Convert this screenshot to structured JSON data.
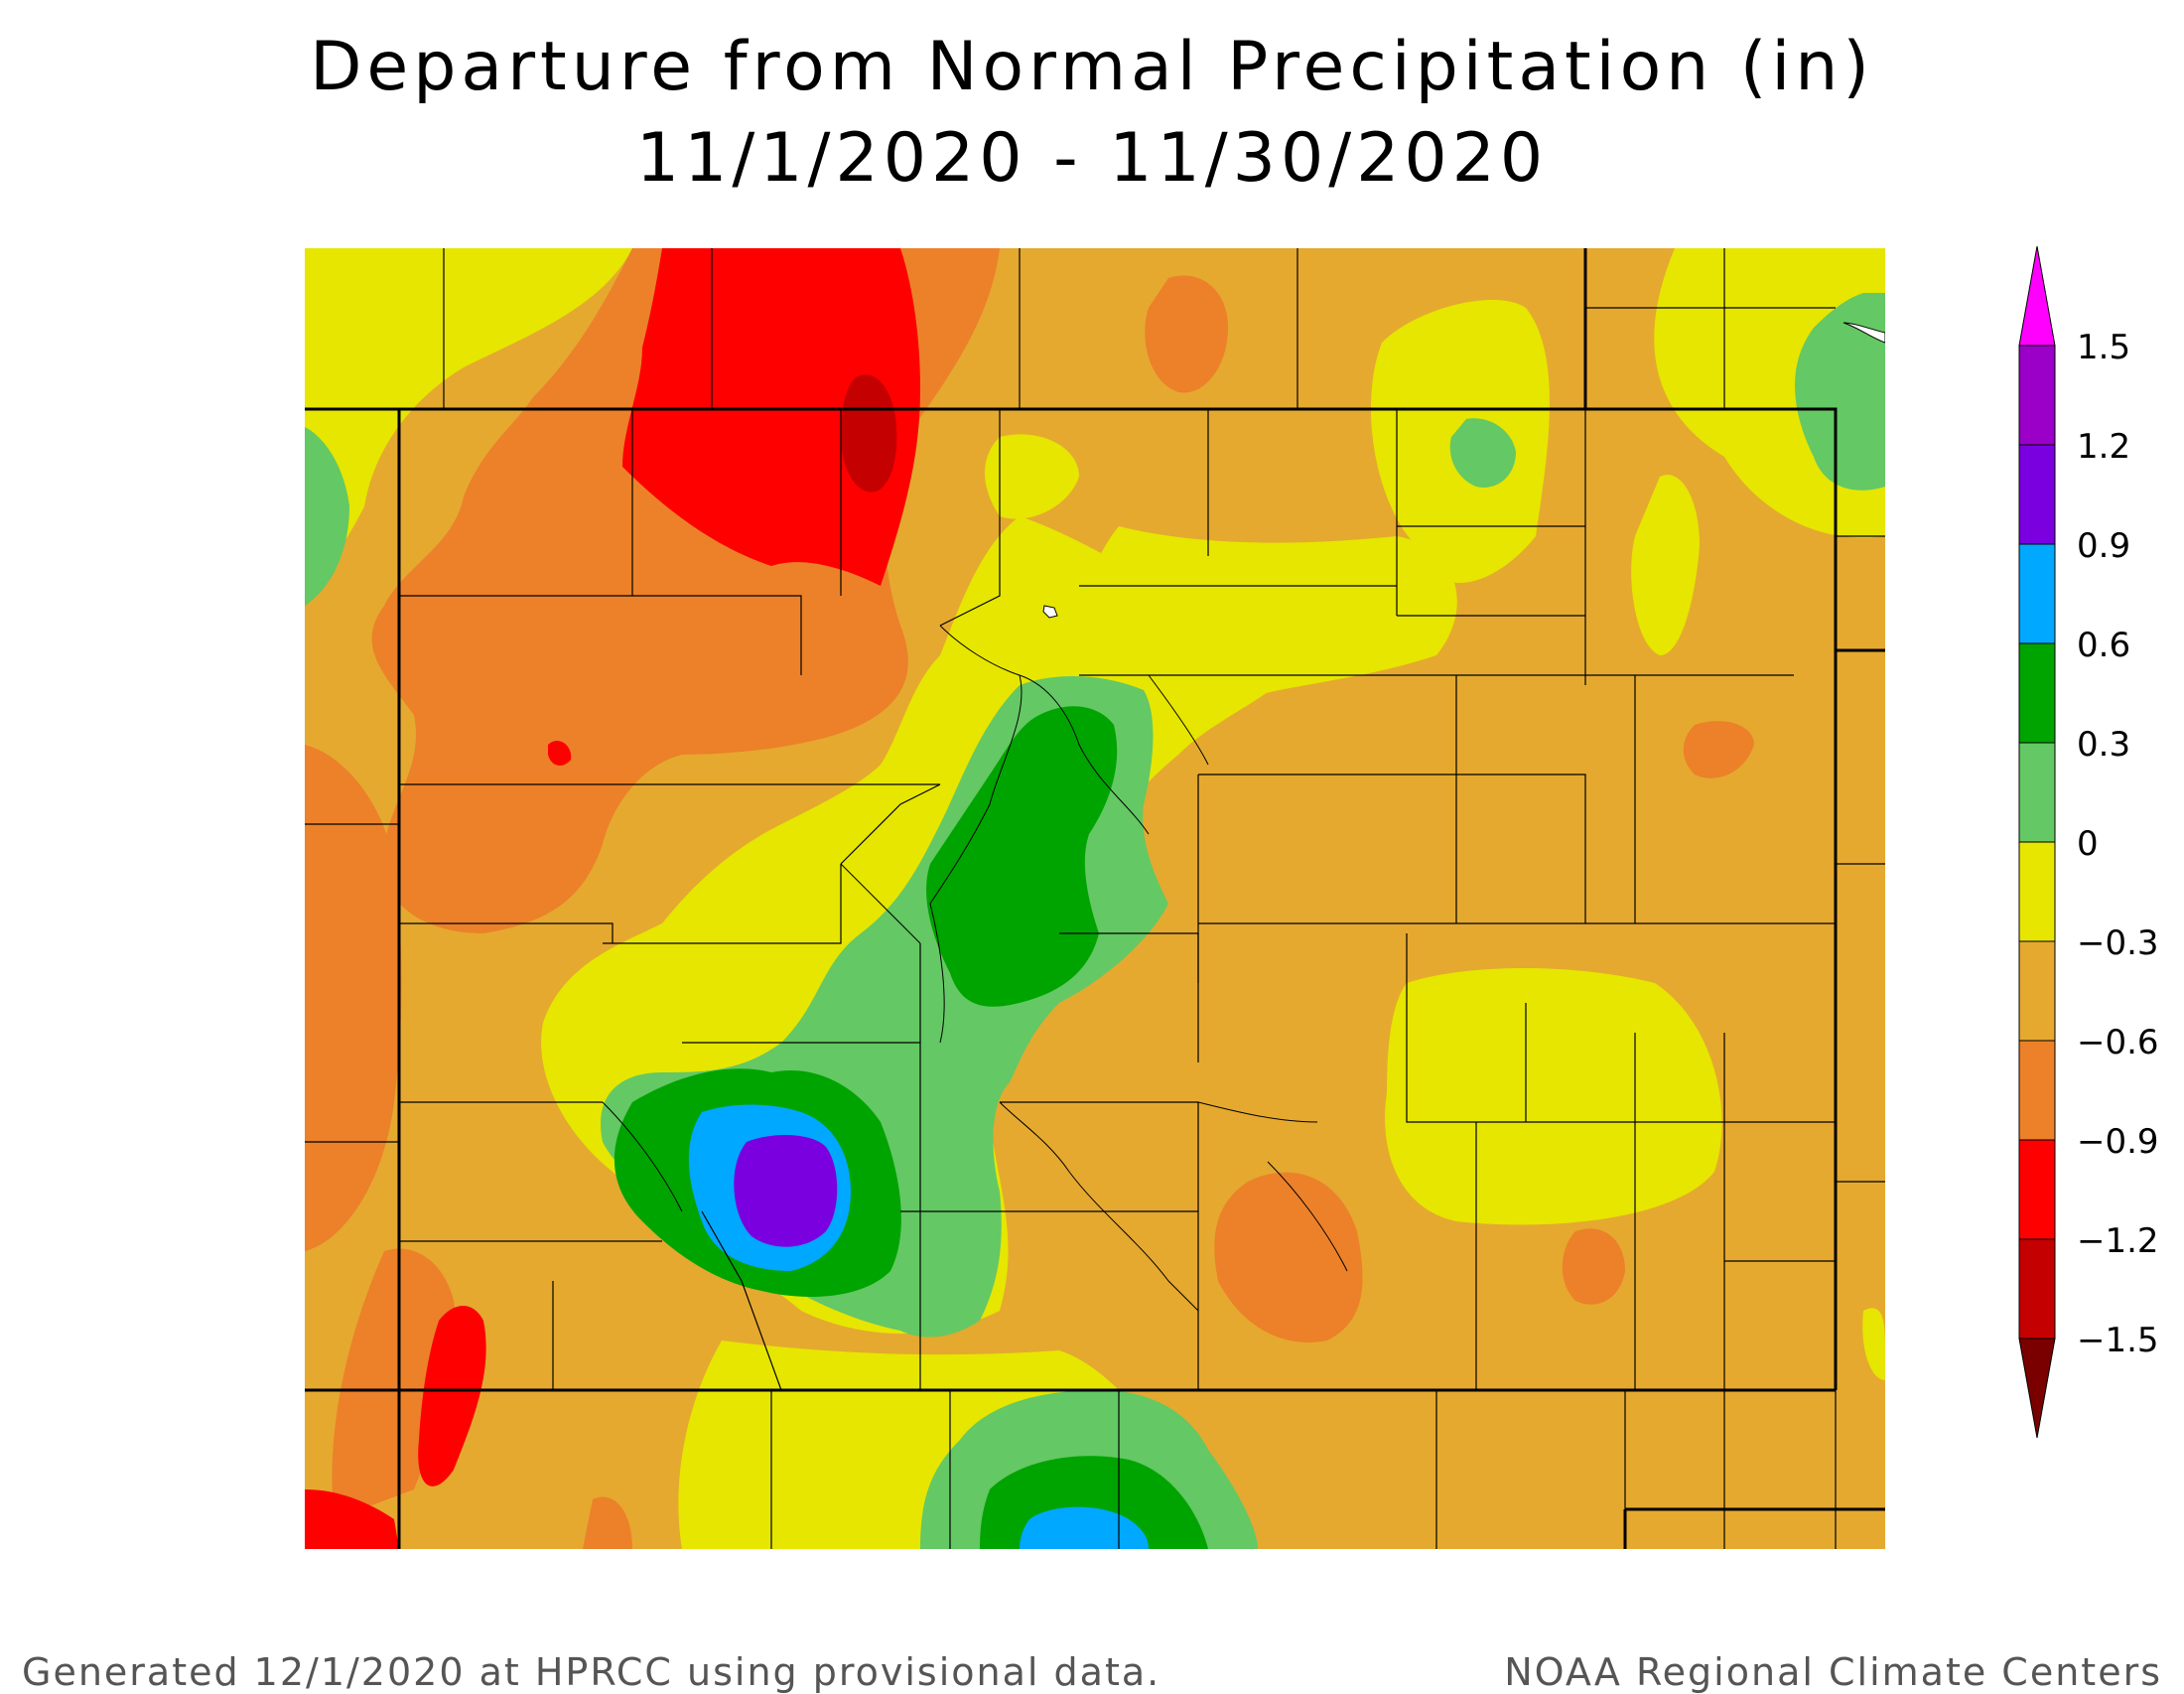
{
  "title": "Departure from Normal Precipitation (in)",
  "date_range": "11/1/2020 - 11/30/2020",
  "footer": {
    "generated": "Generated 12/1/2020 at HPRCC using provisional data.",
    "credit": "NOAA Regional Climate Centers"
  },
  "legend": {
    "labels": [
      "1.5",
      "1.2",
      "0.9",
      "0.6",
      "0.3",
      "0",
      "−0.3",
      "−0.6",
      "−0.9",
      "−1.2",
      "−1.5"
    ],
    "colors": [
      "#ff00ff",
      "#9a00c8",
      "#7b00e0",
      "#00a8ff",
      "#00a400",
      "#64c864",
      "#e6e600",
      "#e5a92f",
      "#ec8129",
      "#ff0000",
      "#c40000",
      "#7a0000"
    ]
  },
  "palette": {
    "background": "#e5a92f",
    "yellow": "#e6e600",
    "lightgreen": "#64c864",
    "green": "#00a400",
    "blue": "#00a8ff",
    "purple": "#7b00e0",
    "orange": "#ec8129",
    "red": "#ff0000",
    "darkred": "#c40000"
  }
}
